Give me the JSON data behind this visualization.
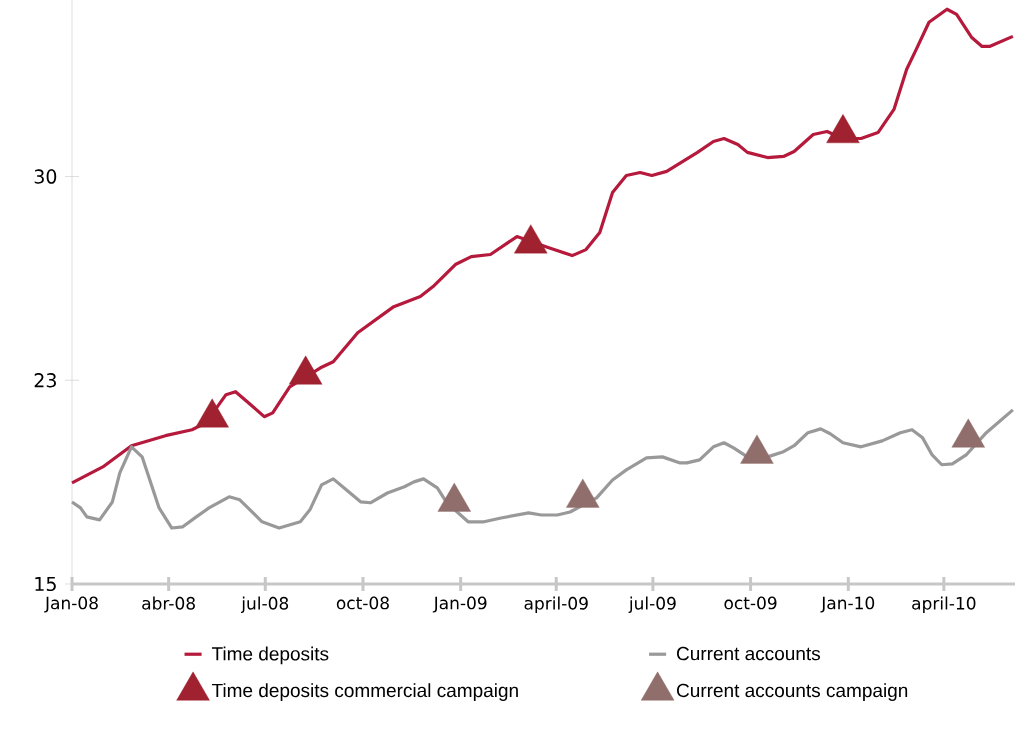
{
  "chart_data": {
    "type": "line",
    "xlim": [
      "2008-01",
      "2010-06-07"
    ],
    "ylim": [
      15,
      36.5
    ],
    "xticks": [
      {
        "value": "2008-01",
        "label": "Jan-08"
      },
      {
        "value": "2008-04",
        "label": "abr-08"
      },
      {
        "value": "2008-07",
        "label": "jul-08"
      },
      {
        "value": "2008-10",
        "label": "oct-08"
      },
      {
        "value": "2009-01",
        "label": "Jan-09"
      },
      {
        "value": "2009-04",
        "label": "april-09"
      },
      {
        "value": "2009-07",
        "label": "jul-09"
      },
      {
        "value": "2009-10",
        "label": "oct-09"
      },
      {
        "value": "2010-01",
        "label": "Jan-10"
      },
      {
        "value": "2010-04",
        "label": "april-10"
      }
    ],
    "yticks": [
      15,
      {
        "value": 22.5,
        "label": "23"
      },
      30
    ],
    "legend": "bottom",
    "series": [
      {
        "name": "Time deposits",
        "color": "#b5193b",
        "x": [
          "2008-01-01",
          "2008-01-30",
          "2008-02-26",
          "2008-03-29",
          "2008-04-23",
          "2008-05-06",
          "2008-05-25",
          "2008-06-03",
          "2008-06-14",
          "2008-06-30",
          "2008-07-08",
          "2008-07-24",
          "2008-08-22",
          "2008-09-03",
          "2008-09-26",
          "2008-10-30",
          "2008-11-24",
          "2008-12-06",
          "2008-12-27",
          "2009-01-11",
          "2009-01-29",
          "2009-02-23",
          "2009-03-25",
          "2009-04-16",
          "2009-04-29",
          "2009-05-12",
          "2009-05-24",
          "2009-06-06",
          "2009-06-19",
          "2009-06-30",
          "2009-07-14",
          "2009-08-12",
          "2009-08-27",
          "2009-09-06",
          "2009-09-19",
          "2009-09-28",
          "2009-10-17",
          "2009-11-01",
          "2009-11-11",
          "2009-11-29",
          "2009-12-12",
          "2009-12-27",
          "2010-01-13",
          "2010-01-29",
          "2010-02-13",
          "2010-02-25",
          "2010-03-06",
          "2010-03-18",
          "2010-04-04",
          "2010-04-13",
          "2010-04-27",
          "2010-05-07",
          "2010-05-14",
          "2010-06-05"
        ],
        "values": [
          18.72,
          19.31,
          20.09,
          20.46,
          20.68,
          20.93,
          21.97,
          22.08,
          21.71,
          21.16,
          21.3,
          22.26,
          22.96,
          23.18,
          24.25,
          25.21,
          25.58,
          25.95,
          26.76,
          27.05,
          27.13,
          27.79,
          27.38,
          27.09,
          27.31,
          27.94,
          29.41,
          30.04,
          30.15,
          30.04,
          30.19,
          30.89,
          31.29,
          31.4,
          31.18,
          30.89,
          30.7,
          30.74,
          30.92,
          31.55,
          31.66,
          31.4,
          31.4,
          31.62,
          32.47,
          33.95,
          34.68,
          35.68,
          36.16,
          35.97,
          35.13,
          34.79,
          34.79,
          35.16
        ]
      },
      {
        "name": "Current accounts",
        "color": "#999999",
        "x": [
          "2008-01-01",
          "2008-01-09",
          "2008-01-15",
          "2008-01-27",
          "2008-02-08",
          "2008-02-15",
          "2008-02-26",
          "2008-03-07",
          "2008-03-23",
          "2008-04-04",
          "2008-04-14",
          "2008-04-27",
          "2008-05-09",
          "2008-05-28",
          "2008-06-07",
          "2008-06-28",
          "2008-07-14",
          "2008-08-03",
          "2008-08-12",
          "2008-08-23",
          "2008-09-03",
          "2008-09-13",
          "2008-09-29",
          "2008-10-08",
          "2008-10-24",
          "2008-11-09",
          "2008-11-18",
          "2008-11-27",
          "2008-12-10",
          "2008-12-19",
          "2009-01-08",
          "2009-01-23",
          "2009-02-08",
          "2009-03-06",
          "2009-03-18",
          "2009-04-02",
          "2009-04-14",
          "2009-05-09",
          "2009-05-24",
          "2009-06-06",
          "2009-06-25",
          "2009-07-10",
          "2009-07-26",
          "2009-08-02",
          "2009-08-14",
          "2009-08-27",
          "2009-09-06",
          "2009-09-15",
          "2009-09-28",
          "2009-10-17",
          "2009-11-01",
          "2009-11-11",
          "2009-11-24",
          "2009-12-06",
          "2009-12-15",
          "2009-12-27",
          "2010-01-13",
          "2010-02-02",
          "2010-02-19",
          "2010-03-02",
          "2010-03-12",
          "2010-03-21",
          "2010-03-30",
          "2010-04-09",
          "2010-04-22",
          "2010-05-11",
          "2010-06-05"
        ],
        "values": [
          18.02,
          17.8,
          17.47,
          17.36,
          18.02,
          19.09,
          20.05,
          19.68,
          17.8,
          17.06,
          17.1,
          17.47,
          17.8,
          18.21,
          18.1,
          17.29,
          17.06,
          17.29,
          17.73,
          18.65,
          18.87,
          18.54,
          18.02,
          17.99,
          18.35,
          18.58,
          18.76,
          18.87,
          18.54,
          17.99,
          17.29,
          17.29,
          17.43,
          17.62,
          17.54,
          17.54,
          17.65,
          18.17,
          18.83,
          19.2,
          19.64,
          19.68,
          19.46,
          19.46,
          19.57,
          20.05,
          20.2,
          20.01,
          19.68,
          19.68,
          19.87,
          20.09,
          20.57,
          20.71,
          20.53,
          20.2,
          20.05,
          20.27,
          20.57,
          20.68,
          20.38,
          19.75,
          19.39,
          19.42,
          19.75,
          20.57,
          21.41
        ]
      },
      {
        "name": "Time deposits commercial campaign",
        "type": "scatter",
        "marker": "triangle",
        "color": "#a0212f",
        "x": [
          "2008-05-12",
          "2008-08-08",
          "2009-03-08",
          "2009-12-27"
        ],
        "values": [
          21.12,
          22.7,
          27.53,
          31.59
        ]
      },
      {
        "name": "Current accounts  campaign",
        "type": "scatter",
        "marker": "triangle",
        "color": "#8f6e6c",
        "x": [
          "2008-12-26",
          "2009-04-26",
          "2009-10-07",
          "2010-04-24"
        ],
        "values": [
          18.02,
          18.17,
          19.79,
          20.38
        ]
      }
    ]
  }
}
